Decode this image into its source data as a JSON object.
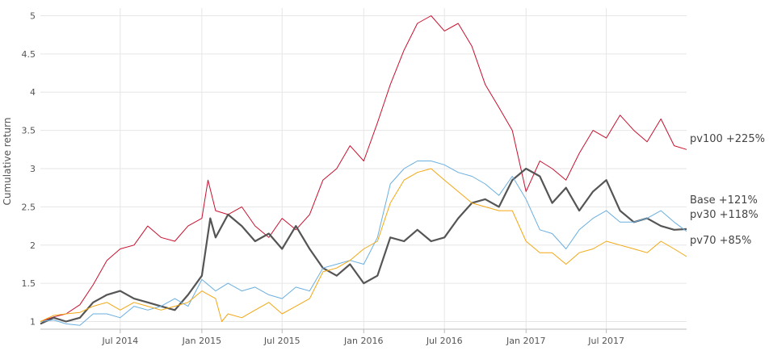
{
  "chart_data": {
    "type": "line",
    "ylabel": "Cumulative return",
    "xlabel": "",
    "ylim": [
      0.9,
      5.1
    ],
    "xlim": [
      "2014-01-02",
      "2017-12-29"
    ],
    "grid": true,
    "y_ticks": [
      {
        "value": 1,
        "label": "1"
      },
      {
        "value": 1.5,
        "label": "1.5"
      },
      {
        "value": 2,
        "label": "2"
      },
      {
        "value": 2.5,
        "label": "2.5"
      },
      {
        "value": 3,
        "label": "3"
      },
      {
        "value": 3.5,
        "label": "3.5"
      },
      {
        "value": 4,
        "label": "4"
      },
      {
        "value": 4.5,
        "label": "4.5"
      },
      {
        "value": 5,
        "label": "5"
      }
    ],
    "x_ticks": [
      {
        "value": "2014-07-01",
        "label": "Jul 2014"
      },
      {
        "value": "2015-01-01",
        "label": "Jan 2015"
      },
      {
        "value": "2015-07-01",
        "label": "Jul 2015"
      },
      {
        "value": "2016-01-01",
        "label": "Jan 2016"
      },
      {
        "value": "2016-07-01",
        "label": "Jul 2016"
      },
      {
        "value": "2017-01-01",
        "label": "Jan 2017"
      },
      {
        "value": "2017-07-01",
        "label": "Jul 2017"
      }
    ],
    "series": [
      {
        "name": "pv100",
        "end_label": "pv100 +225%",
        "color": "#c8102e",
        "width": 1,
        "points": [
          [
            "2014-01-02",
            1.0
          ],
          [
            "2014-02-01",
            1.06
          ],
          [
            "2014-03-01",
            1.1
          ],
          [
            "2014-04-01",
            1.22
          ],
          [
            "2014-05-01",
            1.48
          ],
          [
            "2014-06-01",
            1.8
          ],
          [
            "2014-07-01",
            1.95
          ],
          [
            "2014-08-01",
            2.0
          ],
          [
            "2014-09-01",
            2.25
          ],
          [
            "2014-10-01",
            2.1
          ],
          [
            "2014-11-01",
            2.05
          ],
          [
            "2014-12-01",
            2.25
          ],
          [
            "2015-01-01",
            2.35
          ],
          [
            "2015-01-15",
            2.85
          ],
          [
            "2015-02-01",
            2.45
          ],
          [
            "2015-03-01",
            2.4
          ],
          [
            "2015-04-01",
            2.5
          ],
          [
            "2015-05-01",
            2.25
          ],
          [
            "2015-06-01",
            2.1
          ],
          [
            "2015-07-01",
            2.35
          ],
          [
            "2015-08-01",
            2.2
          ],
          [
            "2015-09-01",
            2.4
          ],
          [
            "2015-10-01",
            2.85
          ],
          [
            "2015-11-01",
            3.0
          ],
          [
            "2015-12-01",
            3.3
          ],
          [
            "2016-01-01",
            3.1
          ],
          [
            "2016-02-01",
            3.6
          ],
          [
            "2016-03-01",
            4.1
          ],
          [
            "2016-04-01",
            4.55
          ],
          [
            "2016-05-01",
            4.9
          ],
          [
            "2016-06-01",
            5.0
          ],
          [
            "2016-07-01",
            4.8
          ],
          [
            "2016-08-01",
            4.9
          ],
          [
            "2016-09-01",
            4.6
          ],
          [
            "2016-10-01",
            4.1
          ],
          [
            "2016-11-01",
            3.8
          ],
          [
            "2016-12-01",
            3.5
          ],
          [
            "2017-01-01",
            2.7
          ],
          [
            "2017-02-01",
            3.1
          ],
          [
            "2017-03-01",
            3.0
          ],
          [
            "2017-04-01",
            2.85
          ],
          [
            "2017-05-01",
            3.2
          ],
          [
            "2017-06-01",
            3.5
          ],
          [
            "2017-07-01",
            3.4
          ],
          [
            "2017-08-01",
            3.7
          ],
          [
            "2017-09-01",
            3.5
          ],
          [
            "2017-10-01",
            3.35
          ],
          [
            "2017-11-01",
            3.65
          ],
          [
            "2017-12-01",
            3.3
          ],
          [
            "2017-12-29",
            3.25
          ]
        ]
      },
      {
        "name": "Base",
        "end_label": "Base  +121%",
        "color": "#555555",
        "width": 2.2,
        "points": [
          [
            "2014-01-02",
            0.97
          ],
          [
            "2014-02-01",
            1.05
          ],
          [
            "2014-03-01",
            1.0
          ],
          [
            "2014-04-01",
            1.05
          ],
          [
            "2014-05-01",
            1.25
          ],
          [
            "2014-06-01",
            1.35
          ],
          [
            "2014-07-01",
            1.4
          ],
          [
            "2014-08-01",
            1.3
          ],
          [
            "2014-09-01",
            1.25
          ],
          [
            "2014-10-01",
            1.2
          ],
          [
            "2014-11-01",
            1.15
          ],
          [
            "2014-12-01",
            1.35
          ],
          [
            "2015-01-01",
            1.6
          ],
          [
            "2015-01-20",
            2.35
          ],
          [
            "2015-02-01",
            2.1
          ],
          [
            "2015-03-01",
            2.4
          ],
          [
            "2015-04-01",
            2.25
          ],
          [
            "2015-05-01",
            2.05
          ],
          [
            "2015-06-01",
            2.15
          ],
          [
            "2015-07-01",
            1.95
          ],
          [
            "2015-08-01",
            2.25
          ],
          [
            "2015-09-01",
            1.95
          ],
          [
            "2015-10-01",
            1.7
          ],
          [
            "2015-11-01",
            1.6
          ],
          [
            "2015-12-01",
            1.75
          ],
          [
            "2016-01-01",
            1.5
          ],
          [
            "2016-02-01",
            1.6
          ],
          [
            "2016-03-01",
            2.1
          ],
          [
            "2016-04-01",
            2.05
          ],
          [
            "2016-05-01",
            2.2
          ],
          [
            "2016-06-01",
            2.05
          ],
          [
            "2016-07-01",
            2.1
          ],
          [
            "2016-08-01",
            2.35
          ],
          [
            "2016-09-01",
            2.55
          ],
          [
            "2016-10-01",
            2.6
          ],
          [
            "2016-11-01",
            2.5
          ],
          [
            "2016-12-01",
            2.85
          ],
          [
            "2017-01-01",
            3.0
          ],
          [
            "2017-02-01",
            2.9
          ],
          [
            "2017-03-01",
            2.55
          ],
          [
            "2017-04-01",
            2.75
          ],
          [
            "2017-05-01",
            2.45
          ],
          [
            "2017-06-01",
            2.7
          ],
          [
            "2017-07-01",
            2.85
          ],
          [
            "2017-08-01",
            2.45
          ],
          [
            "2017-09-01",
            2.3
          ],
          [
            "2017-10-01",
            2.35
          ],
          [
            "2017-11-01",
            2.25
          ],
          [
            "2017-12-01",
            2.2
          ],
          [
            "2017-12-29",
            2.21
          ]
        ]
      },
      {
        "name": "pv30",
        "end_label": "pv30 +118%",
        "color": "#6aafe0",
        "width": 1,
        "points": [
          [
            "2014-01-02",
            1.0
          ],
          [
            "2014-02-01",
            1.02
          ],
          [
            "2014-03-01",
            0.97
          ],
          [
            "2014-04-01",
            0.95
          ],
          [
            "2014-05-01",
            1.1
          ],
          [
            "2014-06-01",
            1.1
          ],
          [
            "2014-07-01",
            1.05
          ],
          [
            "2014-08-01",
            1.2
          ],
          [
            "2014-09-01",
            1.15
          ],
          [
            "2014-10-01",
            1.2
          ],
          [
            "2014-11-01",
            1.3
          ],
          [
            "2014-12-01",
            1.2
          ],
          [
            "2015-01-01",
            1.55
          ],
          [
            "2015-02-01",
            1.4
          ],
          [
            "2015-03-01",
            1.5
          ],
          [
            "2015-04-01",
            1.4
          ],
          [
            "2015-05-01",
            1.45
          ],
          [
            "2015-06-01",
            1.35
          ],
          [
            "2015-07-01",
            1.3
          ],
          [
            "2015-08-01",
            1.45
          ],
          [
            "2015-09-01",
            1.4
          ],
          [
            "2015-10-01",
            1.7
          ],
          [
            "2015-11-01",
            1.75
          ],
          [
            "2015-12-01",
            1.8
          ],
          [
            "2016-01-01",
            1.75
          ],
          [
            "2016-02-01",
            2.1
          ],
          [
            "2016-03-01",
            2.8
          ],
          [
            "2016-04-01",
            3.0
          ],
          [
            "2016-05-01",
            3.1
          ],
          [
            "2016-06-01",
            3.1
          ],
          [
            "2016-07-01",
            3.05
          ],
          [
            "2016-08-01",
            2.95
          ],
          [
            "2016-09-01",
            2.9
          ],
          [
            "2016-10-01",
            2.8
          ],
          [
            "2016-11-01",
            2.65
          ],
          [
            "2016-12-01",
            2.9
          ],
          [
            "2017-01-01",
            2.6
          ],
          [
            "2017-02-01",
            2.2
          ],
          [
            "2017-03-01",
            2.15
          ],
          [
            "2017-04-01",
            1.95
          ],
          [
            "2017-05-01",
            2.2
          ],
          [
            "2017-06-01",
            2.35
          ],
          [
            "2017-07-01",
            2.45
          ],
          [
            "2017-08-01",
            2.3
          ],
          [
            "2017-09-01",
            2.3
          ],
          [
            "2017-10-01",
            2.35
          ],
          [
            "2017-11-01",
            2.45
          ],
          [
            "2017-12-01",
            2.3
          ],
          [
            "2017-12-29",
            2.18
          ]
        ]
      },
      {
        "name": "pv70",
        "end_label": "pv70 +85%",
        "color": "#f3a712",
        "width": 1,
        "points": [
          [
            "2014-01-02",
            1.0
          ],
          [
            "2014-02-01",
            1.08
          ],
          [
            "2014-03-01",
            1.1
          ],
          [
            "2014-04-01",
            1.12
          ],
          [
            "2014-05-01",
            1.2
          ],
          [
            "2014-06-01",
            1.25
          ],
          [
            "2014-07-01",
            1.15
          ],
          [
            "2014-08-01",
            1.25
          ],
          [
            "2014-09-01",
            1.2
          ],
          [
            "2014-10-01",
            1.15
          ],
          [
            "2014-11-01",
            1.2
          ],
          [
            "2014-12-01",
            1.25
          ],
          [
            "2015-01-01",
            1.4
          ],
          [
            "2015-02-01",
            1.3
          ],
          [
            "2015-02-15",
            1.0
          ],
          [
            "2015-03-01",
            1.1
          ],
          [
            "2015-04-01",
            1.05
          ],
          [
            "2015-05-01",
            1.15
          ],
          [
            "2015-06-01",
            1.25
          ],
          [
            "2015-07-01",
            1.1
          ],
          [
            "2015-08-01",
            1.2
          ],
          [
            "2015-09-01",
            1.3
          ],
          [
            "2015-10-01",
            1.65
          ],
          [
            "2015-11-01",
            1.7
          ],
          [
            "2015-12-01",
            1.8
          ],
          [
            "2016-01-01",
            1.95
          ],
          [
            "2016-02-01",
            2.05
          ],
          [
            "2016-03-01",
            2.55
          ],
          [
            "2016-04-01",
            2.85
          ],
          [
            "2016-05-01",
            2.95
          ],
          [
            "2016-06-01",
            3.0
          ],
          [
            "2016-07-01",
            2.85
          ],
          [
            "2016-08-01",
            2.7
          ],
          [
            "2016-09-01",
            2.55
          ],
          [
            "2016-10-01",
            2.5
          ],
          [
            "2016-11-01",
            2.45
          ],
          [
            "2016-12-01",
            2.45
          ],
          [
            "2017-01-01",
            2.05
          ],
          [
            "2017-02-01",
            1.9
          ],
          [
            "2017-03-01",
            1.9
          ],
          [
            "2017-04-01",
            1.75
          ],
          [
            "2017-05-01",
            1.9
          ],
          [
            "2017-06-01",
            1.95
          ],
          [
            "2017-07-01",
            2.05
          ],
          [
            "2017-08-01",
            2.0
          ],
          [
            "2017-09-01",
            1.95
          ],
          [
            "2017-10-01",
            1.9
          ],
          [
            "2017-11-01",
            2.05
          ],
          [
            "2017-12-01",
            1.95
          ],
          [
            "2017-12-29",
            1.85
          ]
        ]
      }
    ]
  }
}
